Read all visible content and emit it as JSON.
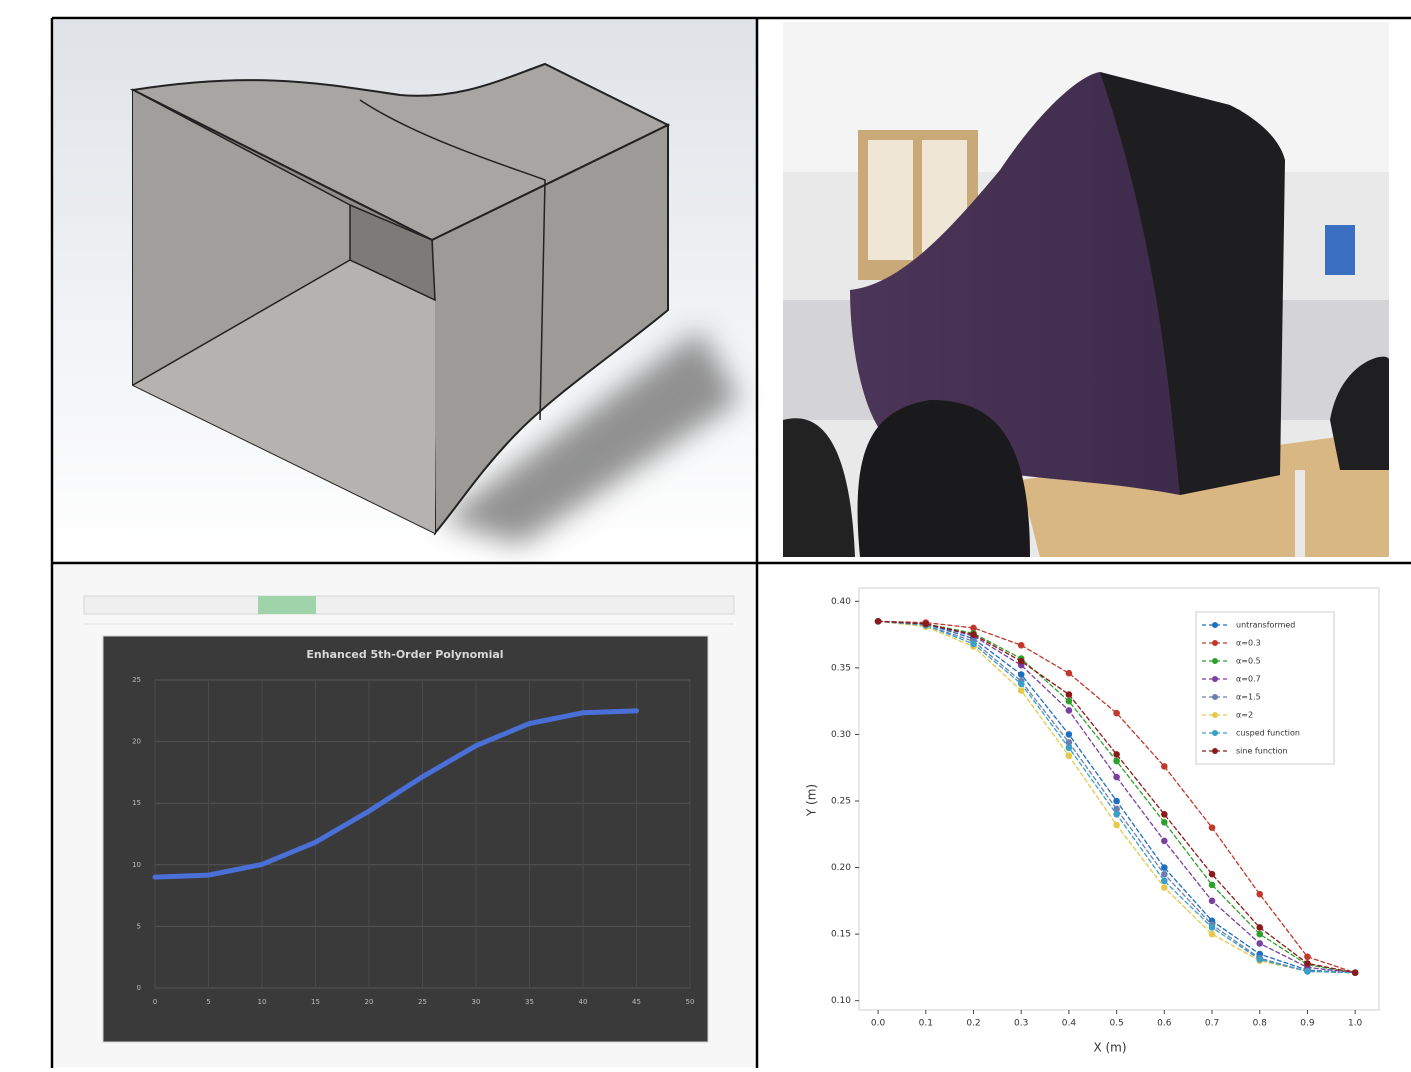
{
  "chart_data": [
    {
      "type": "line",
      "title": "Enhanced 5th-Order Polynomial",
      "x": [
        0,
        5,
        10,
        15,
        20,
        25,
        30,
        35,
        40,
        45
      ],
      "series": [
        {
          "name": null,
          "color": "#4a6fd6",
          "values": [
            9,
            9.16,
            10.03,
            11.83,
            14.36,
            17.14,
            19.67,
            21.47,
            22.34,
            22.5
          ]
        }
      ],
      "xlim": [
        0,
        50
      ],
      "xticks": [
        0,
        5,
        10,
        15,
        20,
        25,
        30,
        35,
        40,
        45,
        50
      ],
      "ylim": [
        0,
        25
      ],
      "yticks": [
        0,
        5,
        10,
        15,
        20,
        25
      ],
      "grid": true
    },
    {
      "type": "line",
      "xlabel": "X (m)",
      "ylabel": "Y (m)",
      "x": [
        0,
        0.1,
        0.2,
        0.3,
        0.4,
        0.5,
        0.6,
        0.7,
        0.8,
        0.9,
        1
      ],
      "series": [
        {
          "name": "untransformed",
          "color": "#1f6fbf",
          "values": [
            0.385,
            0.383,
            0.372,
            0.345,
            0.3,
            0.25,
            0.2,
            0.16,
            0.135,
            0.123,
            0.121
          ]
        },
        {
          "name": "α=0.3",
          "color": "#c0392b",
          "values": [
            0.385,
            0.384,
            0.38,
            0.367,
            0.346,
            0.316,
            0.276,
            0.23,
            0.18,
            0.133,
            0.121
          ]
        },
        {
          "name": "α=0.5",
          "color": "#2ca02c",
          "values": [
            0.385,
            0.383,
            0.376,
            0.357,
            0.325,
            0.28,
            0.234,
            0.187,
            0.15,
            0.127,
            0.121
          ]
        },
        {
          "name": "α=0.7",
          "color": "#7b3fa0",
          "values": [
            0.385,
            0.383,
            0.374,
            0.352,
            0.318,
            0.268,
            0.22,
            0.175,
            0.143,
            0.125,
            0.121
          ]
        },
        {
          "name": "α=1.5",
          "color": "#6a7fb0",
          "values": [
            0.385,
            0.382,
            0.37,
            0.34,
            0.294,
            0.244,
            0.195,
            0.157,
            0.132,
            0.122,
            0.121
          ]
        },
        {
          "name": "α=2",
          "color": "#e6c84a",
          "values": [
            0.385,
            0.381,
            0.366,
            0.333,
            0.284,
            0.232,
            0.185,
            0.15,
            0.13,
            0.122,
            0.121
          ]
        },
        {
          "name": "cusped function",
          "color": "#3aa0c8",
          "values": [
            0.385,
            0.382,
            0.368,
            0.338,
            0.29,
            0.24,
            0.19,
            0.155,
            0.131,
            0.122,
            0.121
          ]
        },
        {
          "name": "sine function",
          "color": "#8b1a1a",
          "values": [
            0.385,
            0.383,
            0.375,
            0.355,
            0.33,
            0.285,
            0.24,
            0.195,
            0.155,
            0.128,
            0.121
          ]
        }
      ],
      "xlim": [
        -0.04,
        1.05
      ],
      "xticks": [
        {
          "value": 0,
          "label": "0.0"
        },
        0.1,
        0.2,
        0.3,
        0.4,
        0.5,
        0.6,
        0.7,
        0.8,
        0.9,
        {
          "value": 1,
          "label": "1.0"
        }
      ],
      "ylim": [
        0.093,
        0.41
      ],
      "yticks": [
        {
          "value": 0.1,
          "label": "0.10"
        },
        {
          "value": 0.15,
          "label": "0.15"
        },
        {
          "value": 0.2,
          "label": "0.20"
        },
        {
          "value": 0.25,
          "label": "0.25"
        },
        {
          "value": 0.3,
          "label": "0.30"
        },
        {
          "value": 0.35,
          "label": "0.35"
        },
        {
          "value": 0.4,
          "label": "0.40"
        }
      ],
      "legend": "upper right",
      "grid": false
    }
  ]
}
